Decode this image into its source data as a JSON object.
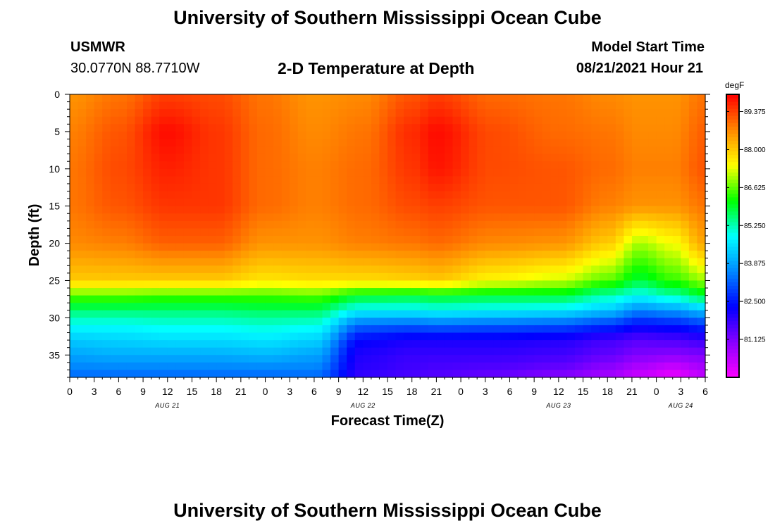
{
  "page": {
    "title_top": "University of Southern Mississippi Ocean Cube",
    "title_bottom": "University of Southern Mississippi Ocean Cube",
    "station": "USMWR",
    "coordinates": "30.0770N  88.7710W",
    "plot_heading": "2-D Temperature at Depth",
    "model_start_label": "Model Start Time",
    "model_start_value": "08/21/2021 Hour 21"
  },
  "chart_data": {
    "type": "heatmap",
    "title": "2-D Temperature at Depth",
    "xlabel": "Forecast Time(Z)",
    "ylabel": "Depth (ft)",
    "x_unit": "hours since 00Z Aug 21",
    "xlim": [
      0,
      78
    ],
    "ylim": [
      0,
      38
    ],
    "y_inverted": true,
    "x_ticks": [
      {
        "h": 0,
        "label": "0"
      },
      {
        "h": 3,
        "label": "3"
      },
      {
        "h": 6,
        "label": "6"
      },
      {
        "h": 9,
        "label": "9"
      },
      {
        "h": 12,
        "label": "12"
      },
      {
        "h": 15,
        "label": "15"
      },
      {
        "h": 18,
        "label": "18"
      },
      {
        "h": 21,
        "label": "21"
      },
      {
        "h": 24,
        "label": "0"
      },
      {
        "h": 27,
        "label": "3"
      },
      {
        "h": 30,
        "label": "6"
      },
      {
        "h": 33,
        "label": "9"
      },
      {
        "h": 36,
        "label": "12"
      },
      {
        "h": 39,
        "label": "15"
      },
      {
        "h": 42,
        "label": "18"
      },
      {
        "h": 45,
        "label": "21"
      },
      {
        "h": 48,
        "label": "0"
      },
      {
        "h": 51,
        "label": "3"
      },
      {
        "h": 54,
        "label": "6"
      },
      {
        "h": 57,
        "label": "9"
      },
      {
        "h": 60,
        "label": "12"
      },
      {
        "h": 63,
        "label": "15"
      },
      {
        "h": 66,
        "label": "18"
      },
      {
        "h": 69,
        "label": "21"
      },
      {
        "h": 72,
        "label": "0"
      },
      {
        "h": 75,
        "label": "3"
      },
      {
        "h": 78,
        "label": "6"
      }
    ],
    "date_labels": [
      {
        "h": 12,
        "label": "AUG 21"
      },
      {
        "h": 36,
        "label": "AUG 22"
      },
      {
        "h": 60,
        "label": "AUG 23"
      },
      {
        "h": 75,
        "label": "AUG 24"
      }
    ],
    "y_ticks": [
      0,
      5,
      10,
      15,
      20,
      25,
      30,
      35
    ],
    "colorbar": {
      "unit": "degF",
      "min": 79.75,
      "max": 90.0,
      "labels": [
        89.375,
        88.0,
        86.625,
        85.25,
        83.875,
        82.5,
        81.125
      ],
      "colors": [
        "#ff00ff",
        "#8800ff",
        "#0000ff",
        "#0088ff",
        "#00ffff",
        "#00ff00",
        "#ffff00",
        "#ff8800",
        "#ff0000"
      ]
    },
    "depth_profile_anchors_ft": [
      0,
      5,
      10,
      15,
      20,
      25,
      27,
      29,
      31,
      33,
      35,
      37,
      38
    ],
    "columns": [
      {
        "h": 0,
        "temps": [
          88.6,
          88.8,
          88.9,
          88.9,
          88.7,
          88.0,
          86.6,
          85.6,
          84.9,
          84.3,
          83.9,
          83.5,
          83.3
        ]
      },
      {
        "h": 6,
        "temps": [
          88.9,
          89.2,
          89.3,
          89.2,
          88.8,
          88.0,
          86.6,
          85.6,
          84.9,
          84.4,
          84.0,
          83.5,
          83.3
        ]
      },
      {
        "h": 12,
        "temps": [
          89.4,
          89.9,
          89.7,
          89.5,
          89.1,
          88.0,
          86.5,
          85.6,
          85.0,
          84.5,
          84.0,
          83.5,
          83.3
        ]
      },
      {
        "h": 18,
        "temps": [
          89.3,
          89.5,
          89.5,
          89.5,
          89.1,
          88.0,
          86.5,
          85.6,
          85.0,
          84.5,
          84.0,
          83.5,
          83.3
        ]
      },
      {
        "h": 24,
        "temps": [
          88.9,
          89.0,
          89.0,
          89.0,
          88.6,
          87.7,
          86.5,
          85.7,
          85.1,
          84.6,
          84.1,
          83.5,
          83.3
        ]
      },
      {
        "h": 30,
        "temps": [
          88.6,
          88.7,
          88.8,
          88.8,
          88.6,
          87.8,
          86.6,
          85.7,
          85.0,
          84.4,
          83.9,
          83.5,
          83.3
        ]
      },
      {
        "h": 36,
        "temps": [
          88.7,
          88.9,
          89.0,
          89.0,
          88.8,
          87.8,
          86.0,
          84.8,
          83.3,
          82.3,
          82.0,
          81.9,
          81.8
        ]
      },
      {
        "h": 42,
        "temps": [
          89.2,
          89.6,
          89.5,
          89.3,
          88.9,
          87.9,
          85.9,
          84.8,
          83.2,
          82.1,
          81.8,
          81.7,
          81.6
        ]
      },
      {
        "h": 45,
        "temps": [
          89.4,
          89.9,
          89.8,
          89.4,
          89.0,
          88.0,
          86.0,
          84.9,
          83.3,
          82.1,
          81.8,
          81.6,
          81.5
        ]
      },
      {
        "h": 52,
        "temps": [
          89.0,
          89.3,
          89.3,
          89.2,
          88.7,
          87.5,
          85.9,
          84.8,
          83.2,
          82.1,
          81.8,
          81.5,
          81.3
        ]
      },
      {
        "h": 60,
        "temps": [
          88.9,
          89.0,
          89.2,
          89.2,
          88.6,
          87.2,
          85.9,
          84.7,
          83.1,
          82.0,
          81.7,
          81.3,
          81.0
        ]
      },
      {
        "h": 66,
        "temps": [
          88.7,
          88.9,
          89.0,
          88.8,
          88.0,
          86.6,
          85.3,
          84.3,
          82.8,
          81.7,
          81.4,
          80.9,
          80.7
        ]
      },
      {
        "h": 70,
        "temps": [
          88.6,
          88.7,
          88.8,
          88.6,
          87.0,
          85.9,
          84.9,
          83.6,
          82.4,
          81.5,
          81.1,
          80.5,
          80.3
        ]
      },
      {
        "h": 74,
        "temps": [
          88.6,
          88.7,
          88.8,
          88.6,
          87.4,
          86.4,
          85.3,
          83.8,
          82.5,
          81.6,
          81.0,
          80.2,
          80.0
        ]
      },
      {
        "h": 78,
        "temps": [
          88.9,
          89.1,
          89.2,
          88.9,
          88.4,
          86.9,
          85.9,
          84.2,
          82.8,
          81.8,
          81.1,
          80.6,
          80.4
        ]
      }
    ]
  }
}
